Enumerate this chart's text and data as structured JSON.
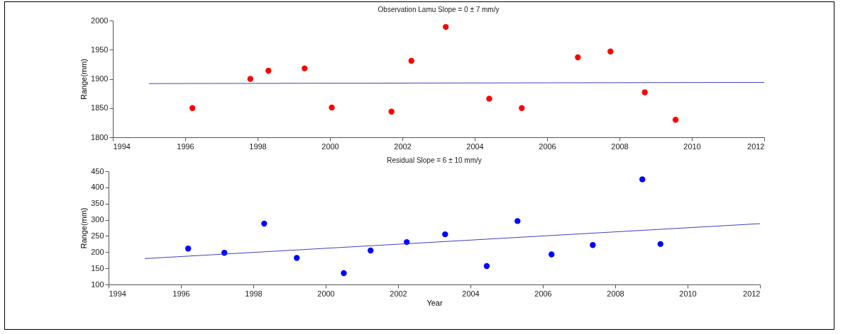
{
  "chart_data": [
    {
      "type": "scatter",
      "title": "Observation        Lamu   Slope = 0 ± 7 mm/y",
      "ylabel": "Range(mm)",
      "xlim": [
        1994,
        2012
      ],
      "xticks": [
        1994,
        1996,
        1998,
        2000,
        2002,
        2004,
        2006,
        2008,
        2010,
        2012
      ],
      "ylim": [
        1800,
        2000
      ],
      "yticks": [
        1800,
        1850,
        1900,
        1950,
        2000
      ],
      "grid": false,
      "series": [
        {
          "type": "scatter",
          "marker": "circle",
          "color": "#ff0000",
          "x": [
            1996.2,
            1997.8,
            1998.3,
            1999.3,
            2000.05,
            2001.7,
            2002.25,
            2003.2,
            2004.4,
            2005.3,
            2006.85,
            2007.75,
            2008.7,
            2009.55
          ],
          "values": [
            1850,
            1900,
            1914,
            1918,
            1851,
            1844,
            1931,
            1989,
            1866,
            1850,
            1937,
            1947,
            1877,
            1830
          ]
        },
        {
          "type": "line",
          "marker": "none",
          "color": "#4040c0",
          "x": [
            1995,
            2012
          ],
          "values": [
            1892,
            1894
          ]
        }
      ]
    },
    {
      "type": "scatter",
      "title": "Residual  Slope = 6 ± 10 mm/y",
      "xlabel": "Year",
      "ylabel": "Range(mm)",
      "xlim": [
        1994,
        2012
      ],
      "xticks": [
        1994,
        1996,
        1998,
        2000,
        2002,
        2004,
        2006,
        2008,
        2010,
        2012
      ],
      "ylim": [
        100,
        450
      ],
      "yticks": [
        100,
        150,
        200,
        250,
        300,
        350,
        400,
        450
      ],
      "grid": false,
      "series": [
        {
          "type": "scatter",
          "marker": "circle",
          "color": "#0000ff",
          "x": [
            1996.2,
            1997.2,
            1998.3,
            1999.2,
            2000.5,
            2001.24,
            2002.24,
            2003.3,
            2004.45,
            2005.3,
            2006.24,
            2007.38,
            2008.75,
            2009.25
          ],
          "values": [
            211,
            198,
            288,
            182,
            135,
            205,
            231,
            255,
            157,
            296,
            193,
            222,
            425,
            225
          ]
        },
        {
          "type": "line",
          "marker": "none",
          "color": "#4040c0",
          "x": [
            1995,
            2012
          ],
          "values": [
            180,
            288
          ]
        }
      ]
    }
  ]
}
